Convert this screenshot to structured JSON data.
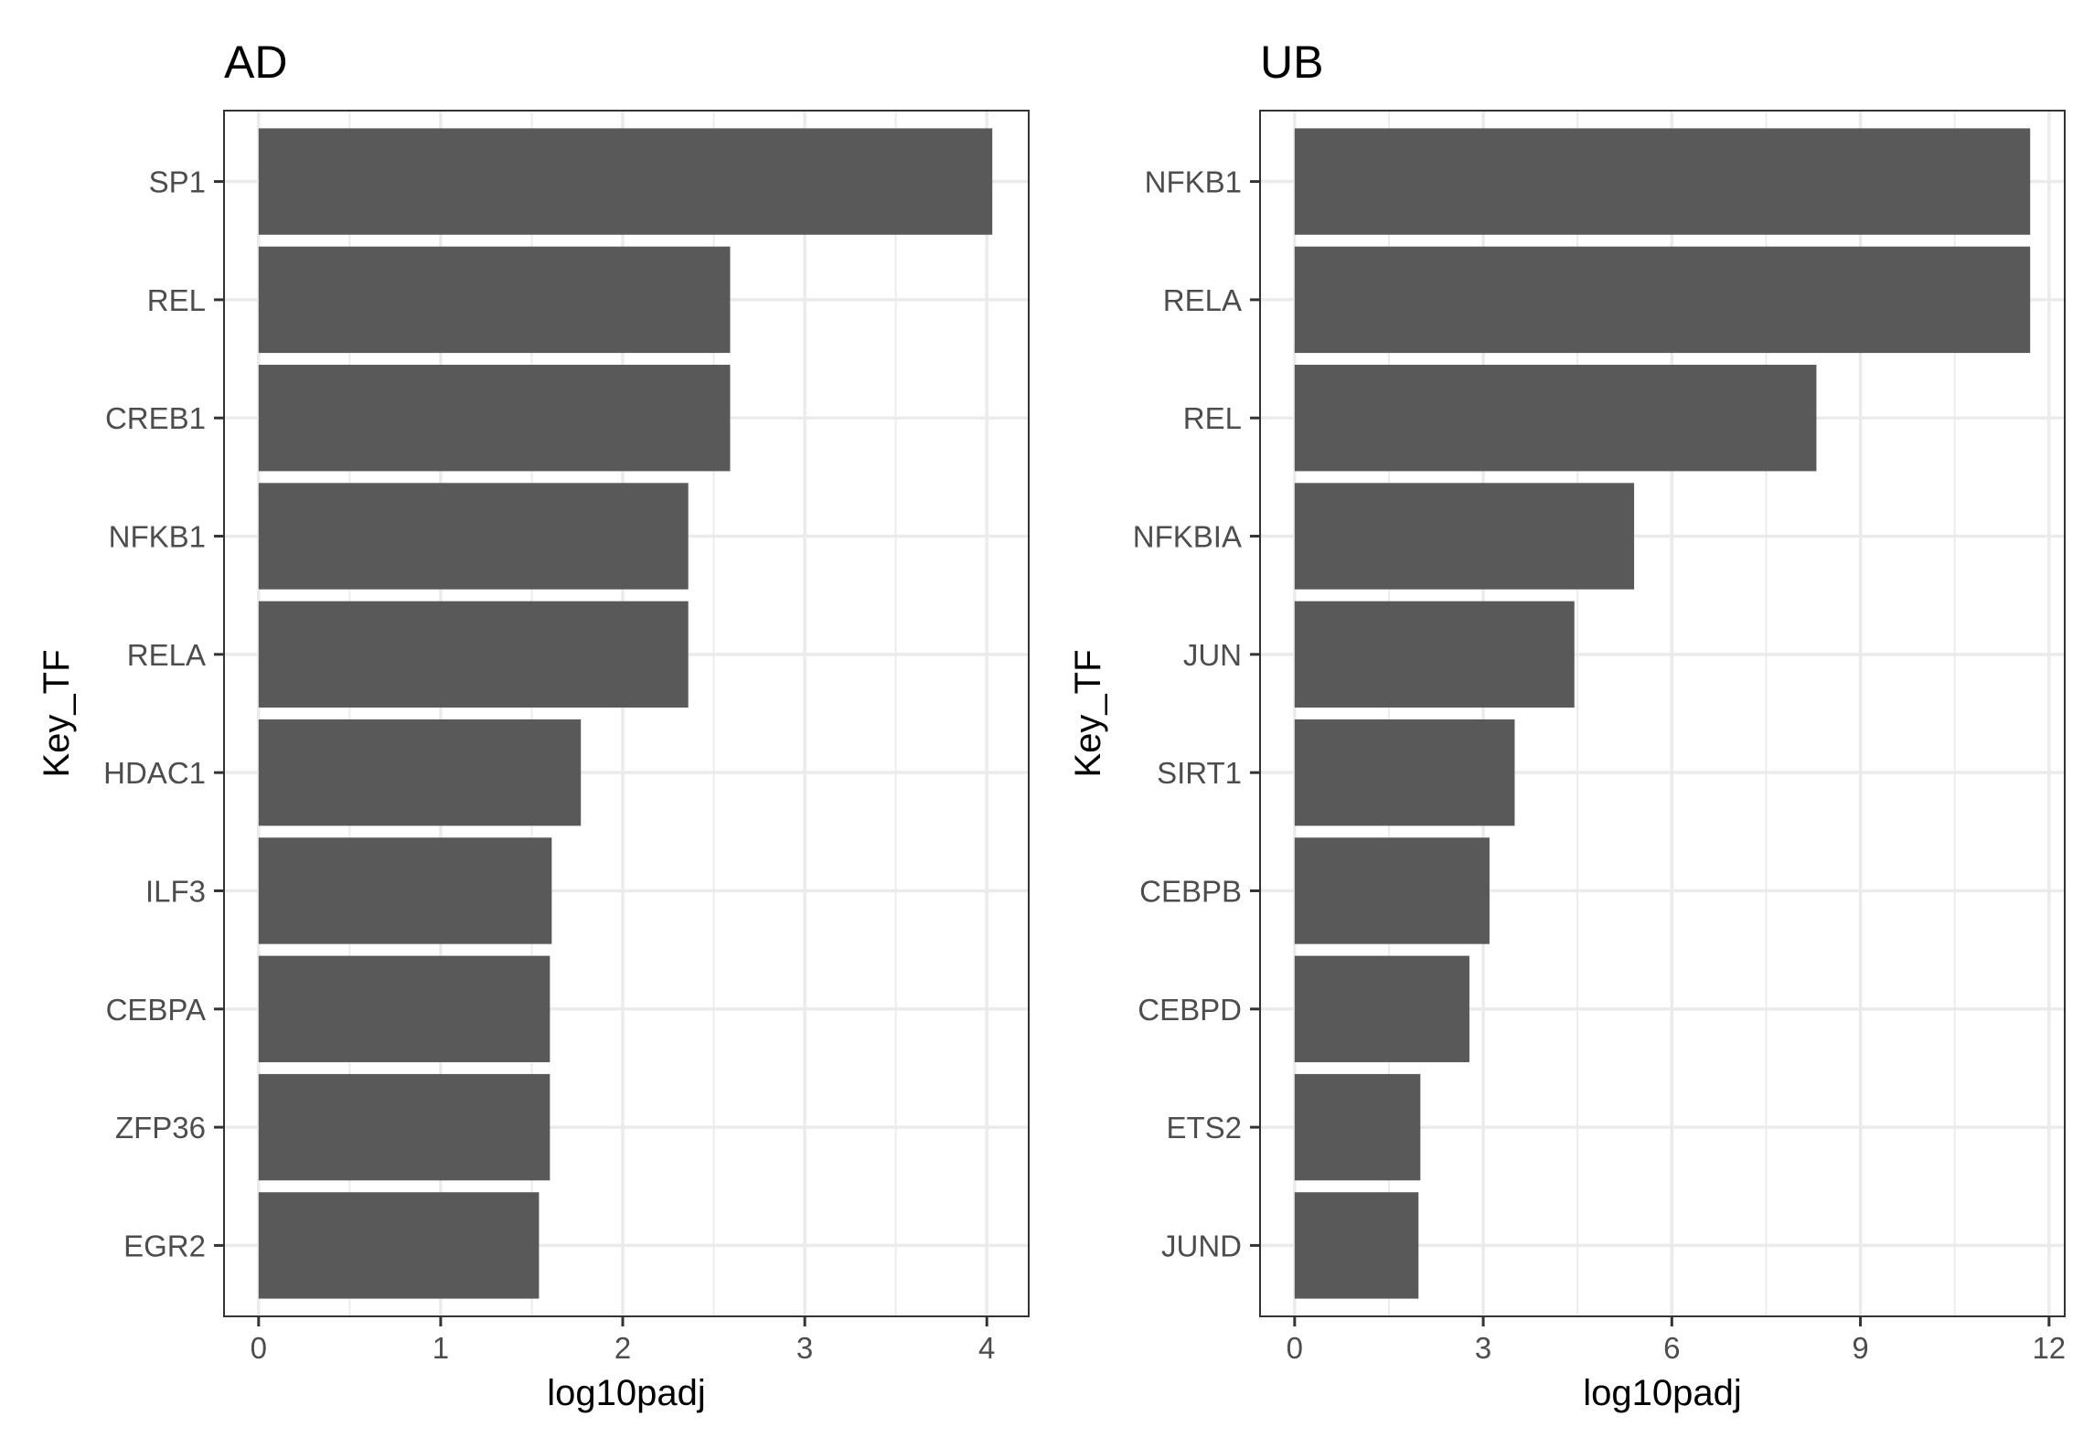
{
  "chart_data": [
    {
      "type": "bar",
      "orientation": "horizontal",
      "title": "AD",
      "xlabel": "log10padj",
      "ylabel": "Key_TF",
      "categories": [
        "SP1",
        "REL",
        "CREB1",
        "NFKB1",
        "RELA",
        "HDAC1",
        "ILF3",
        "CEBPA",
        "ZFP36",
        "EGR2"
      ],
      "values": [
        4.03,
        2.59,
        2.59,
        2.36,
        2.36,
        1.77,
        1.61,
        1.6,
        1.6,
        1.54
      ],
      "xlim": [
        -0.19,
        4.23
      ],
      "xticks": [
        0,
        1,
        2,
        3,
        4
      ],
      "xtick_labels": [
        "0",
        "1",
        "2",
        "3",
        "4"
      ],
      "grid": true,
      "bar_color": "#595959"
    },
    {
      "type": "bar",
      "orientation": "horizontal",
      "title": "UB",
      "xlabel": "log10padj",
      "ylabel": "Key_TF",
      "categories": [
        "NFKB1",
        "RELA",
        "REL",
        "NFKBIA",
        "JUN",
        "SIRT1",
        "CEBPB",
        "CEBPD",
        "ETS2",
        "JUND"
      ],
      "values": [
        11.7,
        11.7,
        8.3,
        5.4,
        4.45,
        3.5,
        3.1,
        2.78,
        2.0,
        1.97
      ],
      "xlim": [
        -0.55,
        12.25
      ],
      "xticks": [
        0,
        3,
        6,
        9,
        12
      ],
      "xtick_labels": [
        "0",
        "3",
        "6",
        "9",
        "12"
      ],
      "grid": true,
      "bar_color": "#595959"
    }
  ]
}
